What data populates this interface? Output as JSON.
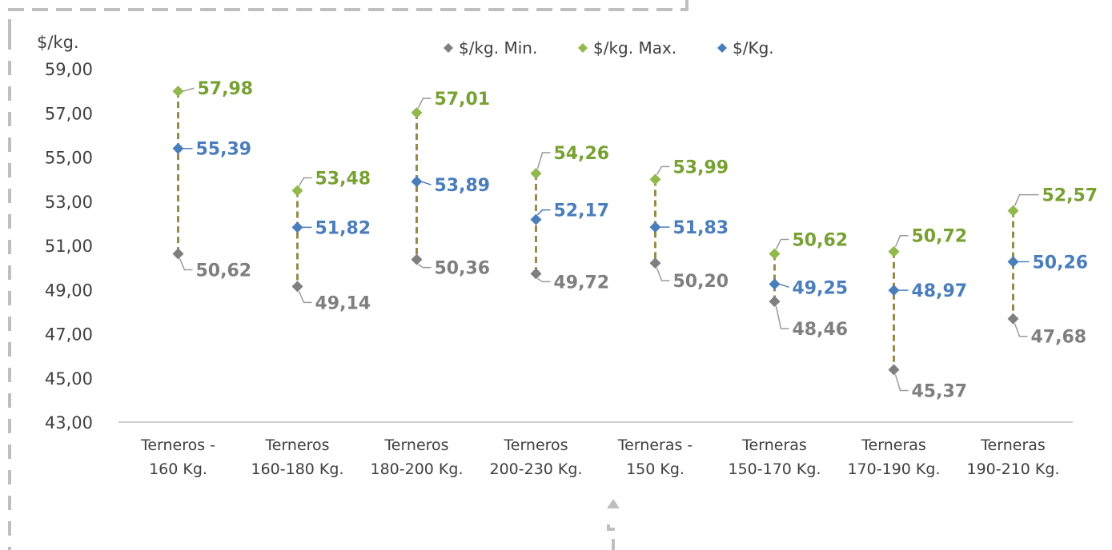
{
  "chart_data": {
    "type": "scatter",
    "title": "",
    "ylabel": "$/kg.",
    "xlabel": "",
    "ylim": [
      43,
      59
    ],
    "yticks": [
      "59,00",
      "57,00",
      "55,00",
      "53,00",
      "51,00",
      "49,00",
      "47,00",
      "45,00",
      "43,00"
    ],
    "ytick_values": [
      59,
      57,
      55,
      53,
      51,
      49,
      47,
      45,
      43
    ],
    "grid": false,
    "legend_position": "top",
    "categories": [
      [
        "Terneros -",
        "160 Kg."
      ],
      [
        "Terneros",
        "160-180 Kg."
      ],
      [
        "Terneros",
        "180-200 Kg."
      ],
      [
        "Terneros",
        "200-230 Kg."
      ],
      [
        "Terneras -",
        "150 Kg."
      ],
      [
        "Terneras",
        "150-170 Kg."
      ],
      [
        "Terneras",
        "170-190 Kg."
      ],
      [
        "Terneras",
        "190-210 Kg."
      ]
    ],
    "series": [
      {
        "name": "$/kg. Min.",
        "color": "#7f7f7f",
        "values": [
          50.62,
          49.14,
          50.36,
          49.72,
          50.2,
          48.46,
          45.37,
          47.68
        ],
        "labels": [
          "50,62",
          "49,14",
          "50,36",
          "49,72",
          "50,20",
          "48,46",
          "45,37",
          "47,68"
        ]
      },
      {
        "name": "$/kg. Max.",
        "color": "#82a33d",
        "values": [
          57.98,
          53.48,
          57.01,
          54.26,
          53.99,
          50.62,
          50.72,
          52.57
        ],
        "labels": [
          "57,98",
          "53,48",
          "57,01",
          "54,26",
          "53,99",
          "50,62",
          "50,72",
          "52,57"
        ]
      },
      {
        "name": "$/Kg.",
        "color": "#4a7ebb",
        "values": [
          55.39,
          51.82,
          53.89,
          52.17,
          51.83,
          49.25,
          48.97,
          50.26
        ],
        "labels": [
          "55,39",
          "51,82",
          "53,89",
          "52,17",
          "51,83",
          "49,25",
          "48,97",
          "50,26"
        ]
      }
    ],
    "colors": {
      "min_marker": "#7f7f7f",
      "max_marker": "#92b94e",
      "avg_marker": "#4a7ebb",
      "max_label": "#77a132",
      "avg_label": "#4a7ebb",
      "min_label": "#7f7f7f",
      "range_line": "#9a8a4a",
      "frame": "#bfbfbf"
    }
  }
}
